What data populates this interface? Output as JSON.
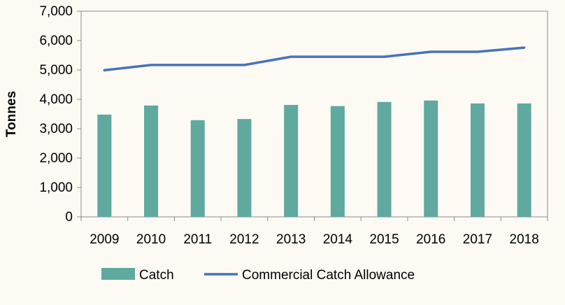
{
  "chart_data": {
    "type": "bar",
    "title": "",
    "xlabel": "",
    "ylabel": "Tonnes",
    "ylim": [
      0,
      7000
    ],
    "yticks": [
      0,
      1000,
      2000,
      3000,
      4000,
      5000,
      6000,
      7000
    ],
    "ytick_labels": [
      "0",
      "1,000",
      "2,000",
      "3,000",
      "4,000",
      "5,000",
      "6,000",
      "7,000"
    ],
    "grid": false,
    "legend_position": "bottom",
    "categories": [
      "2009",
      "2010",
      "2011",
      "2012",
      "2013",
      "2014",
      "2015",
      "2016",
      "2017",
      "2018"
    ],
    "series": [
      {
        "name": "Catch",
        "type": "bar",
        "color": "#5fa99f",
        "values": [
          3480,
          3790,
          3290,
          3330,
          3810,
          3770,
          3910,
          3960,
          3860,
          3860
        ]
      },
      {
        "name": "Commercial Catch Allowance",
        "type": "line",
        "color": "#4a72b8",
        "values": [
          4990,
          5170,
          5170,
          5170,
          5450,
          5450,
          5450,
          5620,
          5620,
          5760
        ]
      }
    ]
  }
}
